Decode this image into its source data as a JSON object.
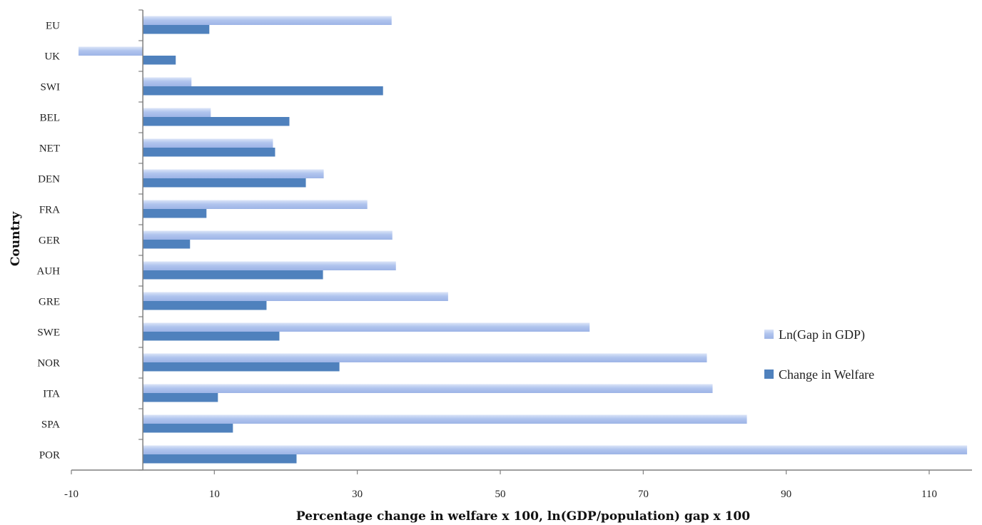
{
  "chart_data": {
    "type": "bar",
    "orientation": "horizontal",
    "categories": [
      "EU",
      "UK",
      "SWI",
      "BEL",
      "NET",
      "DEN",
      "FRA",
      "GER",
      "AUH",
      "GRE",
      "SWE",
      "NOR",
      "ITA",
      "SPA",
      "POR"
    ],
    "series": [
      {
        "name": "Ln(Gap in GDP)",
        "color": "#b0c4ee",
        "values": [
          34.8,
          -9.0,
          6.8,
          9.5,
          18.2,
          25.3,
          31.4,
          34.9,
          35.4,
          42.7,
          62.5,
          78.9,
          79.7,
          84.5,
          115.3
        ]
      },
      {
        "name": "Change in Welfare",
        "color": "#4f81bd",
        "values": [
          9.3,
          4.6,
          33.6,
          20.5,
          18.5,
          22.8,
          8.9,
          6.6,
          25.2,
          17.3,
          19.1,
          27.5,
          10.5,
          12.6,
          21.5
        ]
      }
    ],
    "xlabel": "Percentage change in welfare x 100, ln(GDP/population) gap x 100",
    "ylabel": "Country",
    "xlim": [
      -10,
      123
    ],
    "xticks": [
      -10,
      10,
      30,
      50,
      70,
      90,
      110
    ],
    "xtick_labels": [
      "-10",
      "10",
      "30",
      "50",
      "70",
      "90",
      "110"
    ],
    "grid": false,
    "legend_position": "right"
  }
}
